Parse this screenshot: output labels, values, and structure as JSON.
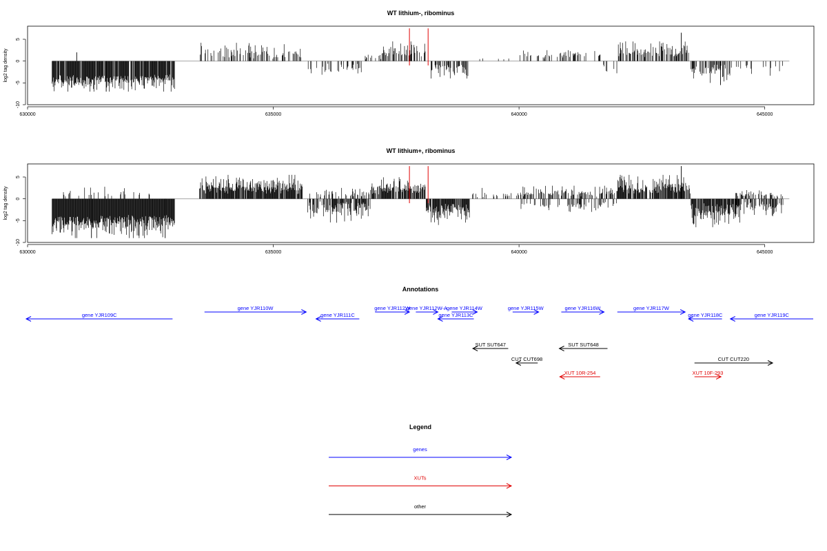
{
  "chart_data": [
    {
      "type": "bar",
      "title": "WT lithium-, ribominus",
      "ylabel": "log2 tag density",
      "xlabel": "",
      "xlim": [
        630000,
        646000
      ],
      "ylim": [
        -10,
        8
      ],
      "x_ticks": [
        630000,
        635000,
        640000,
        645000
      ],
      "x_tick_labels": [
        "630000",
        "635000",
        "640000",
        "645000"
      ],
      "y_ticks": [
        -10,
        -5,
        0,
        5
      ],
      "y_tick_labels": [
        "-10",
        "-5",
        "0",
        "5"
      ],
      "baseline": 0,
      "signal_regions": [
        {
          "start": 630500,
          "end": 633000,
          "sign": -1,
          "min": 3.0,
          "max": 7.0,
          "density": 0.9
        },
        {
          "start": 633500,
          "end": 635600,
          "sign": 1,
          "min": 0.5,
          "max": 4.2,
          "density": 0.35
        },
        {
          "start": 635700,
          "end": 636800,
          "sign": -1,
          "min": 0.5,
          "max": 3.5,
          "density": 0.3
        },
        {
          "start": 636800,
          "end": 637200,
          "sign": 1,
          "min": 0.3,
          "max": 1.5,
          "density": 0.2
        },
        {
          "start": 637200,
          "end": 638100,
          "sign": 1,
          "min": 0.5,
          "max": 4.5,
          "density": 0.5
        },
        {
          "start": 638200,
          "end": 639000,
          "sign": -1,
          "min": 0.5,
          "max": 4.0,
          "density": 0.5
        },
        {
          "start": 639000,
          "end": 640000,
          "sign": 1,
          "min": 0.3,
          "max": 1.0,
          "density": 0.05
        },
        {
          "start": 640000,
          "end": 641700,
          "sign": 1,
          "min": 0.5,
          "max": 2.5,
          "density": 0.25
        },
        {
          "start": 641700,
          "end": 642000,
          "sign": -1,
          "min": 0.5,
          "max": 3.0,
          "density": 0.1
        },
        {
          "start": 642000,
          "end": 643500,
          "sign": 1,
          "min": 0.5,
          "max": 4.5,
          "density": 0.5
        },
        {
          "start": 643500,
          "end": 644300,
          "sign": -1,
          "min": 0.5,
          "max": 5.0,
          "density": 0.5
        },
        {
          "start": 644300,
          "end": 645400,
          "sign": -1,
          "min": 0.5,
          "max": 3.5,
          "density": 0.15
        }
      ],
      "peaks": [
        {
          "x": 631000,
          "y": 2.0
        },
        {
          "x": 643300,
          "y": 6.5
        },
        {
          "x": 644100,
          "y": -5.5
        },
        {
          "x": 631600,
          "y": -7.0
        }
      ],
      "marker_lines": [
        {
          "x": 637770,
          "y0": -1.0,
          "y1": 7.5,
          "color": "#e00000"
        },
        {
          "x": 638150,
          "y0": -1.0,
          "y1": 7.5,
          "color": "#e00000"
        }
      ],
      "bar_color": "#000000",
      "baseline_color": "#999999"
    },
    {
      "type": "bar",
      "title": "WT lithium+, ribominus",
      "ylabel": "log2 tag density",
      "xlabel": "",
      "xlim": [
        630000,
        646000
      ],
      "ylim": [
        -10,
        8
      ],
      "x_ticks": [
        630000,
        635000,
        640000,
        645000
      ],
      "x_tick_labels": [
        "630000",
        "635000",
        "640000",
        "645000"
      ],
      "y_ticks": [
        -10,
        -5,
        0,
        5
      ],
      "y_tick_labels": [
        "-10",
        "-5",
        "0",
        "5"
      ],
      "baseline": 0,
      "signal_regions": [
        {
          "start": 630500,
          "end": 633000,
          "sign": -1,
          "min": 3.5,
          "max": 9.0,
          "density": 1.0
        },
        {
          "start": 630700,
          "end": 632500,
          "sign": 1,
          "min": 0.3,
          "max": 3.0,
          "density": 0.12
        },
        {
          "start": 633500,
          "end": 635600,
          "sign": 1,
          "min": 1.0,
          "max": 5.5,
          "density": 0.9
        },
        {
          "start": 635700,
          "end": 637000,
          "sign": -1,
          "min": 0.5,
          "max": 5.5,
          "density": 0.6
        },
        {
          "start": 635700,
          "end": 637000,
          "sign": 1,
          "min": 0.3,
          "max": 2.5,
          "density": 0.3
        },
        {
          "start": 637000,
          "end": 638100,
          "sign": 1,
          "min": 1.0,
          "max": 5.0,
          "density": 0.8
        },
        {
          "start": 638100,
          "end": 639000,
          "sign": -1,
          "min": 1.0,
          "max": 6.0,
          "density": 0.9
        },
        {
          "start": 639000,
          "end": 640000,
          "sign": 1,
          "min": 0.3,
          "max": 2.5,
          "density": 0.2
        },
        {
          "start": 640000,
          "end": 642000,
          "sign": 1,
          "min": 0.5,
          "max": 3.0,
          "density": 0.45
        },
        {
          "start": 640000,
          "end": 642000,
          "sign": -1,
          "min": 0.5,
          "max": 3.0,
          "density": 0.3
        },
        {
          "start": 642000,
          "end": 643500,
          "sign": 1,
          "min": 1.0,
          "max": 5.5,
          "density": 0.85
        },
        {
          "start": 643500,
          "end": 644500,
          "sign": -1,
          "min": 1.0,
          "max": 6.5,
          "density": 0.9
        },
        {
          "start": 644400,
          "end": 645400,
          "sign": -1,
          "min": 0.5,
          "max": 4.0,
          "density": 0.5
        },
        {
          "start": 644400,
          "end": 645400,
          "sign": 1,
          "min": 0.3,
          "max": 2.0,
          "density": 0.35
        }
      ],
      "peaks": [
        {
          "x": 643300,
          "y": 7.5
        },
        {
          "x": 631300,
          "y": -9.0
        },
        {
          "x": 632800,
          "y": -9.0
        }
      ],
      "marker_lines": [
        {
          "x": 637770,
          "y0": -1.0,
          "y1": 7.5,
          "color": "#e00000"
        },
        {
          "x": 638150,
          "y0": -1.0,
          "y1": 7.5,
          "color": "#e00000"
        }
      ],
      "bar_color": "#000000",
      "baseline_color": "#999999"
    }
  ],
  "annotations": {
    "title": "Annotations",
    "xlim": [
      630000,
      646000
    ],
    "features": [
      {
        "label": "gene YJR109C",
        "start": 629900,
        "end": 632950,
        "dir": "left",
        "row": 2,
        "color": "#0000ff"
      },
      {
        "label": "gene YJR110W",
        "start": 633600,
        "end": 635670,
        "dir": "right",
        "row": 1,
        "color": "#0000ff"
      },
      {
        "label": "gene YJR111C",
        "start": 635870,
        "end": 636750,
        "dir": "left",
        "row": 2,
        "color": "#0000ff"
      },
      {
        "label": "gene YJR112W",
        "start": 637070,
        "end": 637770,
        "dir": "right",
        "row": 1,
        "color": "#0000ff"
      },
      {
        "label": "gene YJR112W-A",
        "start": 637900,
        "end": 638350,
        "dir": "right",
        "row": 1,
        "color": "#0000ff"
      },
      {
        "label": "gene YJR113C",
        "start": 638350,
        "end": 639080,
        "dir": "left",
        "row": 2,
        "color": "#0000ff"
      },
      {
        "label": "gene YJR114W",
        "start": 638630,
        "end": 639150,
        "dir": "right",
        "row": 1,
        "color": "#0000ff"
      },
      {
        "label": "gene YJR115W",
        "start": 639870,
        "end": 640400,
        "dir": "right",
        "row": 1,
        "color": "#0000ff"
      },
      {
        "label": "gene YJR116W",
        "start": 640860,
        "end": 641730,
        "dir": "right",
        "row": 1,
        "color": "#0000ff"
      },
      {
        "label": "gene YJR117W",
        "start": 642000,
        "end": 643380,
        "dir": "right",
        "row": 1,
        "color": "#0000ff"
      },
      {
        "label": "gene YJR118C",
        "start": 643450,
        "end": 644130,
        "dir": "left",
        "row": 2,
        "color": "#0000ff"
      },
      {
        "label": "gene YJR119C",
        "start": 644300,
        "end": 646000,
        "dir": "left",
        "row": 2,
        "color": "#0000ff"
      },
      {
        "label": "SUT SUT647",
        "start": 639060,
        "end": 639780,
        "dir": "left",
        "row": 3,
        "color": "#000000"
      },
      {
        "label": "SUT SUT648",
        "start": 640820,
        "end": 641800,
        "dir": "left",
        "row": 3,
        "color": "#000000"
      },
      {
        "label": "CUT CUT698",
        "start": 639940,
        "end": 640380,
        "dir": "left",
        "row": 4,
        "color": "#000000"
      },
      {
        "label": "CUT CUT220",
        "start": 643570,
        "end": 645160,
        "dir": "right",
        "row": 4,
        "color": "#000000"
      },
      {
        "label": "XUT 10R-254",
        "start": 640830,
        "end": 641650,
        "dir": "left",
        "row": 5,
        "color": "#e00000"
      },
      {
        "label": "XUT 10F-293",
        "start": 643570,
        "end": 644110,
        "dir": "right",
        "row": 5,
        "color": "#e00000"
      }
    ]
  },
  "legend": {
    "title": "Legend",
    "items": [
      {
        "label": "genes",
        "color": "#0000ff"
      },
      {
        "label": "XUTs",
        "color": "#e00000"
      },
      {
        "label": "other",
        "color": "#000000"
      }
    ]
  }
}
